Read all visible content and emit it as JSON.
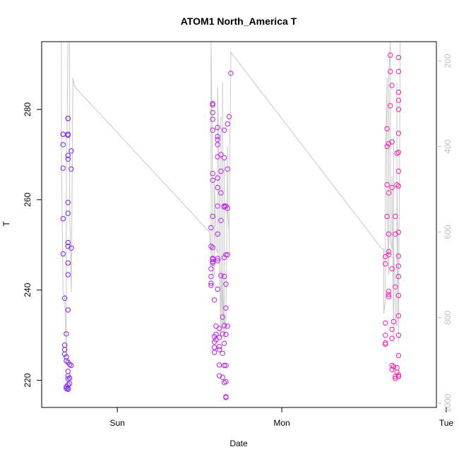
{
  "chart_data": {
    "type": "scatter",
    "title": "ATOM1 North_America T",
    "xlabel": "Date",
    "ylabel": "T",
    "x_ticks": [
      {
        "label": "Sun",
        "value": 0.0
      },
      {
        "label": "Mon",
        "value": 1.0
      },
      {
        "label": "Tue",
        "value": 2.0
      }
    ],
    "xlim": [
      -0.46,
      1.94
    ],
    "y_ticks": [
      220,
      240,
      260,
      280
    ],
    "ylim": [
      214,
      295
    ],
    "y2_ticks": [
      200,
      400,
      600,
      800,
      1000
    ],
    "y2lim": [
      1010,
      155
    ],
    "colors": {
      "early": "#7f1fff",
      "mid": "#c21ff0",
      "late": "#ff1fb0",
      "profile_line": "#c8c8c8"
    },
    "series": [
      {
        "points": [
          [
            -0.33,
            274.5
          ],
          [
            -0.33,
            274.5
          ],
          [
            -0.33,
            272.2
          ],
          [
            -0.33,
            267.0
          ],
          [
            -0.33,
            255.8
          ],
          [
            -0.33,
            248.0
          ],
          [
            -0.32,
            238.2
          ],
          [
            -0.32,
            227.8
          ],
          [
            -0.32,
            226.8
          ],
          [
            -0.32,
            225.8
          ],
          [
            -0.31,
            225.2
          ],
          [
            -0.31,
            224.3
          ],
          [
            -0.31,
            230.3
          ],
          [
            -0.31,
            218.6
          ],
          [
            -0.31,
            218.2
          ],
          [
            -0.3,
            278.0
          ],
          [
            -0.3,
            278.0
          ],
          [
            -0.3,
            274.5
          ],
          [
            -0.3,
            274.3
          ],
          [
            -0.3,
            269.8
          ],
          [
            -0.3,
            269.0
          ],
          [
            -0.3,
            259.4
          ],
          [
            -0.3,
            257.0
          ],
          [
            -0.3,
            250.5
          ],
          [
            -0.3,
            249.7
          ],
          [
            -0.3,
            246.0
          ],
          [
            -0.3,
            243.4
          ],
          [
            -0.3,
            235.6
          ],
          [
            -0.3,
            224.0
          ],
          [
            -0.3,
            222.0
          ],
          [
            -0.3,
            221.0
          ],
          [
            -0.3,
            220.3
          ],
          [
            -0.3,
            219.0
          ],
          [
            -0.3,
            218.0
          ],
          [
            -0.3,
            218.3
          ],
          [
            -0.29,
            223.5
          ],
          [
            -0.29,
            220.5
          ],
          [
            -0.29,
            219.3
          ],
          [
            -0.28,
            266.8
          ],
          [
            -0.28,
            270.8
          ],
          [
            -0.28,
            249.3
          ],
          [
            -0.28,
            223.3
          ]
        ]
      },
      {
        "points": [
          [
            0.57,
            253.8
          ],
          [
            0.57,
            249.7
          ],
          [
            0.57,
            243.0
          ],
          [
            0.57,
            241.5
          ],
          [
            0.57,
            241.0
          ],
          [
            0.57,
            244.7
          ],
          [
            0.58,
            281.3
          ],
          [
            0.58,
            281.0
          ],
          [
            0.58,
            279.3
          ],
          [
            0.58,
            277.8
          ],
          [
            0.58,
            275.4
          ],
          [
            0.58,
            265.8
          ],
          [
            0.58,
            264.3
          ],
          [
            0.58,
            256.3
          ],
          [
            0.58,
            249.4
          ],
          [
            0.58,
            247.0
          ],
          [
            0.58,
            246.8
          ],
          [
            0.58,
            246.3
          ],
          [
            0.58,
            246.0
          ],
          [
            0.59,
            237.8
          ],
          [
            0.59,
            229.7
          ],
          [
            0.59,
            228.5
          ],
          [
            0.59,
            227.3
          ],
          [
            0.59,
            226.2
          ],
          [
            0.6,
            232.0
          ],
          [
            0.6,
            230.2
          ],
          [
            0.6,
            229.0
          ],
          [
            0.61,
            276.0
          ],
          [
            0.61,
            274.0
          ],
          [
            0.61,
            273.3
          ],
          [
            0.61,
            272.2
          ],
          [
            0.61,
            269.5
          ],
          [
            0.61,
            264.8
          ],
          [
            0.61,
            262.7
          ],
          [
            0.61,
            258.6
          ],
          [
            0.61,
            252.4
          ],
          [
            0.61,
            247.0
          ],
          [
            0.61,
            246.5
          ],
          [
            0.61,
            240.2
          ],
          [
            0.62,
            231.5
          ],
          [
            0.62,
            229.5
          ],
          [
            0.62,
            227.5
          ],
          [
            0.62,
            226.8
          ],
          [
            0.62,
            223.4
          ],
          [
            0.62,
            221.0
          ],
          [
            0.63,
            270.0
          ],
          [
            0.63,
            266.3
          ],
          [
            0.63,
            261.5
          ],
          [
            0.63,
            255.4
          ],
          [
            0.63,
            243.2
          ],
          [
            0.64,
            234.0
          ],
          [
            0.64,
            230.3
          ],
          [
            0.64,
            226.0
          ],
          [
            0.64,
            220.7
          ],
          [
            0.65,
            275.4
          ],
          [
            0.65,
            269.3
          ],
          [
            0.65,
            258.6
          ],
          [
            0.65,
            258.4
          ],
          [
            0.65,
            247.2
          ],
          [
            0.65,
            243.0
          ],
          [
            0.65,
            232.1
          ],
          [
            0.65,
            228.2
          ],
          [
            0.65,
            223.3
          ],
          [
            0.65,
            219.5
          ],
          [
            0.66,
            258.6
          ],
          [
            0.66,
            247.8
          ],
          [
            0.66,
            241.3
          ],
          [
            0.66,
            236.0
          ],
          [
            0.66,
            230.2
          ],
          [
            0.66,
            223.3
          ],
          [
            0.66,
            216.4
          ],
          [
            0.66,
            216.2
          ],
          [
            0.66,
            219.7
          ],
          [
            0.67,
            276.8
          ],
          [
            0.67,
            266.8
          ],
          [
            0.67,
            258.1
          ],
          [
            0.67,
            247.8
          ],
          [
            0.67,
            232.0
          ],
          [
            0.68,
            278.4
          ],
          [
            0.69,
            288.0
          ]
        ]
      },
      {
        "points": [
          [
            1.63,
            247.4
          ],
          [
            1.63,
            245.8
          ],
          [
            1.63,
            232.7
          ],
          [
            1.63,
            230.0
          ],
          [
            1.63,
            228.3
          ],
          [
            1.63,
            228.0
          ],
          [
            1.64,
            275.7
          ],
          [
            1.64,
            271.8
          ],
          [
            1.64,
            263.3
          ],
          [
            1.64,
            256.3
          ],
          [
            1.65,
            272.4
          ],
          [
            1.65,
            261.5
          ],
          [
            1.65,
            252.4
          ],
          [
            1.65,
            248.5
          ],
          [
            1.65,
            247.8
          ],
          [
            1.65,
            239.7
          ],
          [
            1.65,
            239.0
          ],
          [
            1.65,
            238.5
          ],
          [
            1.66,
            292.0
          ],
          [
            1.66,
            288.4
          ],
          [
            1.66,
            280.8
          ],
          [
            1.67,
            285.3
          ],
          [
            1.67,
            272.8
          ],
          [
            1.67,
            262.7
          ],
          [
            1.67,
            244.7
          ],
          [
            1.67,
            231.3
          ],
          [
            1.67,
            229.3
          ],
          [
            1.67,
            223.3
          ],
          [
            1.67,
            222.4
          ],
          [
            1.68,
            233.0
          ],
          [
            1.68,
            223.0
          ],
          [
            1.69,
            256.3
          ],
          [
            1.69,
            252.4
          ],
          [
            1.69,
            240.7
          ],
          [
            1.69,
            220.8
          ],
          [
            1.69,
            220.4
          ],
          [
            1.7,
            270.3
          ],
          [
            1.7,
            263.3
          ],
          [
            1.7,
            221.8
          ],
          [
            1.7,
            222.8
          ],
          [
            1.71,
            291.5
          ],
          [
            1.71,
            288.4
          ],
          [
            1.71,
            283.8
          ],
          [
            1.71,
            282.0
          ],
          [
            1.71,
            280.0
          ],
          [
            1.71,
            274.7
          ],
          [
            1.71,
            270.5
          ],
          [
            1.71,
            266.3
          ],
          [
            1.71,
            263.0
          ],
          [
            1.71,
            252.8
          ],
          [
            1.71,
            247.5
          ],
          [
            1.71,
            245.3
          ],
          [
            1.71,
            243.0
          ],
          [
            1.71,
            238.8
          ],
          [
            1.71,
            234.3
          ],
          [
            1.71,
            230.0
          ],
          [
            1.71,
            225.5
          ],
          [
            1.71,
            221.2
          ],
          [
            1.71,
            220.8
          ]
        ]
      },
      {
        "type": "line",
        "axis": "right",
        "points": [
          [
            -0.34,
            155
          ],
          [
            -0.34,
            420
          ],
          [
            -0.33,
            740
          ],
          [
            -0.32,
            750
          ],
          [
            -0.31,
            880
          ],
          [
            -0.31,
            760
          ],
          [
            -0.31,
            500
          ],
          [
            -0.3,
            155
          ],
          [
            -0.29,
            155
          ],
          [
            -0.29,
            540
          ],
          [
            -0.28,
            740
          ],
          [
            -0.27,
            240
          ],
          [
            -0.26,
            260
          ],
          [
            0.56,
            600
          ],
          [
            0.57,
            650
          ],
          [
            0.57,
            680
          ],
          [
            0.57,
            155
          ],
          [
            0.58,
            500
          ],
          [
            0.58,
            700
          ],
          [
            0.59,
            700
          ],
          [
            0.59,
            480
          ],
          [
            0.6,
            600
          ],
          [
            0.6,
            640
          ],
          [
            0.61,
            650
          ],
          [
            0.61,
            410
          ],
          [
            0.61,
            260
          ],
          [
            0.62,
            500
          ],
          [
            0.62,
            680
          ],
          [
            0.63,
            840
          ],
          [
            0.63,
            560
          ],
          [
            0.63,
            330
          ],
          [
            0.63,
            660
          ],
          [
            0.64,
            830
          ],
          [
            0.64,
            330
          ],
          [
            0.64,
            250
          ],
          [
            0.64,
            700
          ],
          [
            0.65,
            850
          ],
          [
            0.65,
            430
          ],
          [
            0.65,
            660
          ],
          [
            0.65,
            800
          ],
          [
            0.66,
            830
          ],
          [
            0.67,
            400
          ],
          [
            0.67,
            550
          ],
          [
            0.68,
            600
          ],
          [
            0.68,
            650
          ],
          [
            0.68,
            560
          ],
          [
            0.69,
            200
          ],
          [
            0.69,
            180
          ],
          [
            1.61,
            640
          ],
          [
            1.62,
            640
          ],
          [
            1.62,
            790
          ],
          [
            1.63,
            760
          ],
          [
            1.63,
            470
          ],
          [
            1.64,
            240
          ],
          [
            1.64,
            540
          ],
          [
            1.65,
            700
          ],
          [
            1.65,
            240
          ],
          [
            1.66,
            155
          ],
          [
            1.66,
            155
          ],
          [
            1.66,
            620
          ],
          [
            1.67,
            640
          ],
          [
            1.67,
            470
          ],
          [
            1.68,
            850
          ],
          [
            1.68,
            380
          ],
          [
            1.68,
            650
          ],
          [
            1.69,
            720
          ],
          [
            1.69,
            800
          ],
          [
            1.7,
            820
          ],
          [
            1.7,
            360
          ],
          [
            1.7,
            250
          ],
          [
            1.7,
            460
          ],
          [
            1.71,
            820
          ],
          [
            1.71,
            860
          ],
          [
            1.71,
            800
          ],
          [
            1.72,
            155
          ]
        ]
      }
    ]
  }
}
